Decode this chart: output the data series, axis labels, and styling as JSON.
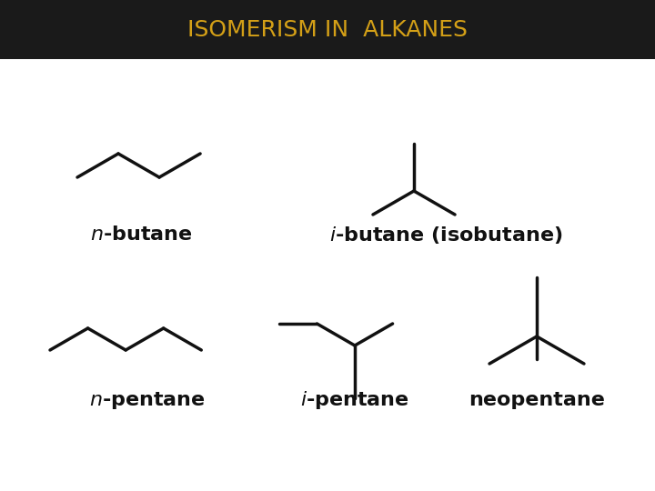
{
  "title": "ISOMERISM IN  ALKANES",
  "title_color": "#D4A017",
  "header_bg": "#1a1a1a",
  "bg_color": "#ffffff",
  "line_color": "#111111",
  "line_width": 2.5,
  "label_color": "#111111",
  "label_fontsize": 16
}
